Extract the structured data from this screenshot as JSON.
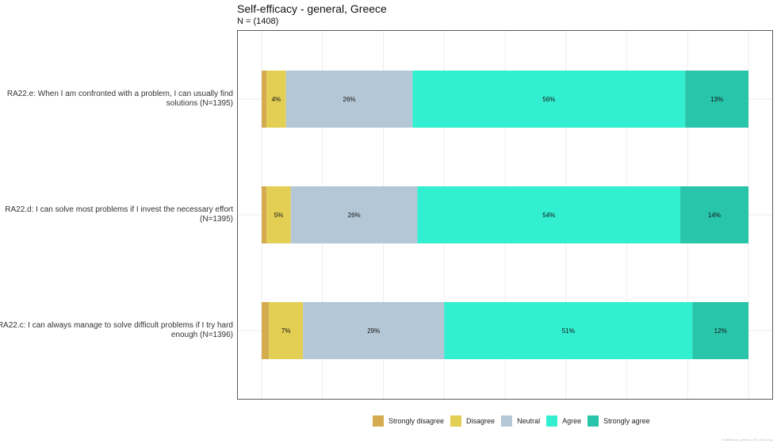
{
  "title": "Self-efficacy - general, Greece",
  "subtitle": "N = (1408)",
  "caption": "Selfefficacy_general_GR_2023.png",
  "colors": {
    "Strongly disagree": "#d4ab4f",
    "Disagree": "#e2cf54",
    "Neutral": "#b4c7d6",
    "Agree": "#33efd1",
    "Strongly agree": "#29c5ab"
  },
  "chart_data": {
    "type": "bar",
    "orientation": "horizontal",
    "stacked": true,
    "title": "Self-efficacy - general, Greece",
    "subtitle": "N = (1408)",
    "xlim": [
      0,
      100
    ],
    "grid": true,
    "legend_position": "bottom",
    "categories": [
      "RA22.e: When I am confronted with a problem, I can usually find solutions (N=1395)",
      "RA22.d: I can solve most problems if I invest the necessary effort (N=1395)",
      "RA22.c: I can always manage to solve difficult problems if I try hard enough (N=1396)"
    ],
    "category_lines": [
      [
        "RA22.e: When I am confronted with a problem, I can usually find",
        "solutions (N=1395)"
      ],
      [
        "RA22.d: I can solve most problems if I invest the necessary effort",
        "(N=1395)"
      ],
      [
        "RA22.c: I can always manage to solve difficult problems if I try hard",
        "enough (N=1396)"
      ]
    ],
    "series": [
      {
        "name": "Strongly disagree",
        "values": [
          1,
          1,
          1.5
        ],
        "labels": [
          "",
          "",
          ""
        ]
      },
      {
        "name": "Disagree",
        "values": [
          4,
          5,
          7
        ],
        "labels": [
          "4%",
          "5%",
          "7%"
        ]
      },
      {
        "name": "Neutral",
        "values": [
          26,
          26,
          29
        ],
        "labels": [
          "26%",
          "26%",
          "29%"
        ]
      },
      {
        "name": "Agree",
        "values": [
          56,
          54,
          51
        ],
        "labels": [
          "56%",
          "54%",
          "51%"
        ]
      },
      {
        "name": "Strongly agree",
        "values": [
          13,
          14,
          11.5
        ],
        "labels": [
          "13%",
          "14%",
          "12%"
        ]
      }
    ]
  }
}
